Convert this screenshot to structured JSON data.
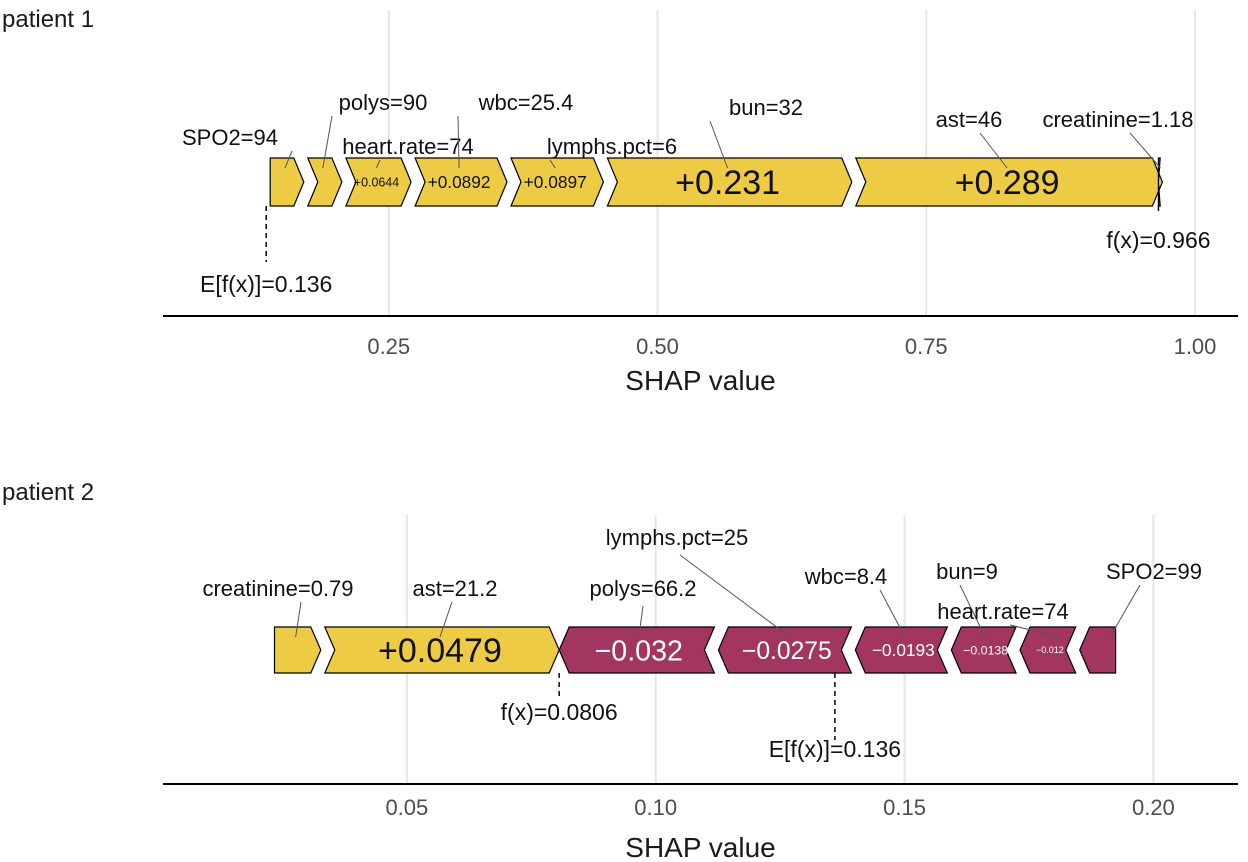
{
  "colors": {
    "positive": "#EECB45",
    "negative": "#A23661",
    "grid": "#e6e6e6",
    "axis": "#000000",
    "text": "#1a1a1a"
  },
  "chart_data": [
    {
      "type": "shap-waterfall-force",
      "title": "patient 1",
      "xlabel": "SHAP value",
      "xlim": [
        0.04,
        1.04
      ],
      "ticks": [
        0.25,
        0.5,
        0.75,
        1.0
      ],
      "tick_labels": [
        "0.25",
        "0.50",
        "0.75",
        "1.00"
      ],
      "grid": true,
      "base_value": 0.136,
      "base_label": "E[f(x)]=0.136",
      "fx": 0.966,
      "fx_label": "f(x)=0.966",
      "segments": [
        {
          "feature": "SPO2=94",
          "start": 0.136,
          "end": 0.171,
          "contribution": 0.035,
          "value_label": ""
        },
        {
          "feature": "polys=90",
          "start": 0.171,
          "end": 0.2064,
          "contribution": 0.0354,
          "value_label": ""
        },
        {
          "feature": "heart.rate=74",
          "start": 0.2064,
          "end": 0.2708,
          "contribution": 0.0644,
          "value_label": "+0.0644"
        },
        {
          "feature": "wbc=25.4",
          "start": 0.2708,
          "end": 0.36,
          "contribution": 0.0892,
          "value_label": "+0.0892"
        },
        {
          "feature": "lymphs.pct=6",
          "start": 0.36,
          "end": 0.4497,
          "contribution": 0.0897,
          "value_label": "+0.0897"
        },
        {
          "feature": "bun=32",
          "start": 0.4497,
          "end": 0.6807,
          "contribution": 0.231,
          "value_label": "+0.231"
        },
        {
          "feature": "ast=46",
          "start": 0.6807,
          "end": 0.9697,
          "contribution": 0.289,
          "value_label": "+0.289"
        },
        {
          "feature": "creatinine=1.18",
          "start": 0.9697,
          "end": 0.966,
          "contribution": -0.0037,
          "value_label": ""
        }
      ]
    },
    {
      "type": "shap-waterfall-force",
      "title": "patient 2",
      "xlabel": "SHAP value",
      "xlim": [
        0.001,
        0.217
      ],
      "ticks": [
        0.05,
        0.1,
        0.15,
        0.2
      ],
      "tick_labels": [
        "0.05",
        "0.10",
        "0.15",
        "0.20"
      ],
      "grid": true,
      "base_value": 0.136,
      "base_label": "E[f(x)]=0.136",
      "fx": 0.0806,
      "fx_label": "f(x)=0.0806",
      "segments": [
        {
          "feature": "creatinine=0.79",
          "start": 0.0226,
          "end": 0.0327,
          "contribution": 0.0101,
          "value_label": ""
        },
        {
          "feature": "ast=21.2",
          "start": 0.0327,
          "end": 0.0806,
          "contribution": 0.0479,
          "value_label": "+0.0479"
        },
        {
          "feature": "polys=66.2",
          "start": 0.1126,
          "end": 0.0806,
          "contribution": -0.032,
          "value_label": "−0.032"
        },
        {
          "feature": "lymphs.pct=25",
          "start": 0.1401,
          "end": 0.1126,
          "contribution": -0.0275,
          "value_label": "−0.0275"
        },
        {
          "feature": "wbc=8.4",
          "start": 0.1594,
          "end": 0.1401,
          "contribution": -0.0193,
          "value_label": "−0.0193"
        },
        {
          "feature": "bun=9",
          "start": 0.1732,
          "end": 0.1594,
          "contribution": -0.0138,
          "value_label": "−0.0138"
        },
        {
          "feature": "heart.rate=74",
          "start": 0.1852,
          "end": 0.1732,
          "contribution": -0.012,
          "value_label": "−0.012"
        },
        {
          "feature": "SPO2=99",
          "start": 0.1932,
          "end": 0.1852,
          "contribution": -0.008,
          "value_label": ""
        }
      ]
    }
  ]
}
